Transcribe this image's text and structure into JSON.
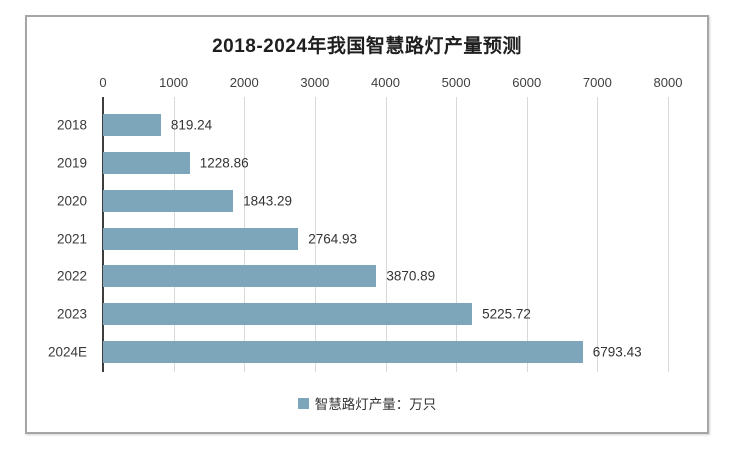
{
  "chart_data": {
    "type": "bar",
    "orientation": "horizontal",
    "title": "2018-2024年我国智慧路灯产量预测",
    "categories": [
      "2018",
      "2019",
      "2020",
      "2021",
      "2022",
      "2023",
      "2024E"
    ],
    "values": [
      819.24,
      1228.86,
      1843.29,
      2764.93,
      3870.89,
      5225.72,
      6793.43
    ],
    "value_labels": [
      "819.24",
      "1228.86",
      "1843.29",
      "2764.93",
      "3870.89",
      "5225.72",
      "6793.43"
    ],
    "xlim": [
      0,
      8000
    ],
    "x_ticks": [
      0,
      1000,
      2000,
      3000,
      4000,
      5000,
      6000,
      7000,
      8000
    ],
    "x_tick_labels": [
      "0",
      "1000",
      "2000",
      "3000",
      "4000",
      "5000",
      "6000",
      "7000",
      "8000"
    ],
    "x_axis_position": "top",
    "grid": "vertical",
    "legend_position": "bottom",
    "legend": [
      {
        "label": "智慧路灯产量：万只",
        "color": "#7da6ba"
      }
    ],
    "colors": {
      "bar": "#7da6ba",
      "gridline": "#d9d9d9",
      "axis_line": "#3d3d3d",
      "title_text": "#1f1f1f",
      "tick_text": "#3f3f3f",
      "frame_border": "#a6a6a6"
    }
  }
}
